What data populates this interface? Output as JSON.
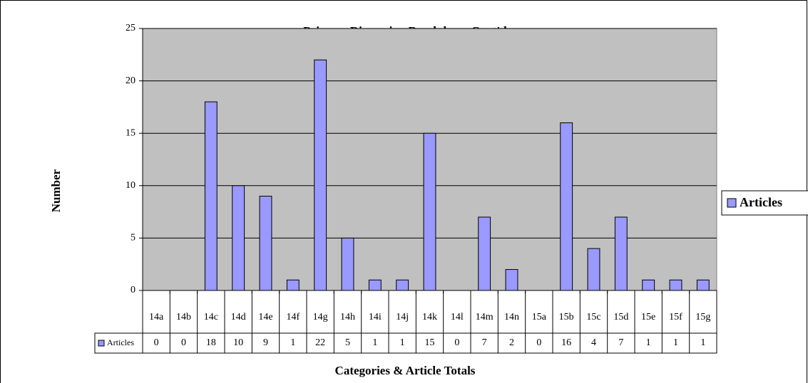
{
  "chart_data": {
    "type": "bar",
    "title": "Primary Dimension Breakdown Cont'd",
    "y_label": "Number",
    "x_label": "Categories & Article Totals",
    "categories": [
      "14a",
      "14b",
      "14c",
      "14d",
      "14e",
      "14f",
      "14g",
      "14h",
      "14i",
      "14j",
      "14k",
      "14l",
      "14m",
      "14n",
      "15a",
      "15b",
      "15c",
      "15d",
      "15e",
      "15f",
      "15g"
    ],
    "series": [
      {
        "name": "Articles",
        "color": "#9999ff",
        "values": [
          0,
          0,
          18,
          10,
          9,
          1,
          22,
          5,
          1,
          1,
          15,
          0,
          7,
          2,
          0,
          16,
          4,
          7,
          1,
          1,
          1
        ]
      }
    ],
    "ylim": [
      0,
      25
    ],
    "yticks": [
      0,
      5,
      10,
      15,
      20,
      25
    ],
    "grid": true,
    "legend": "right"
  }
}
